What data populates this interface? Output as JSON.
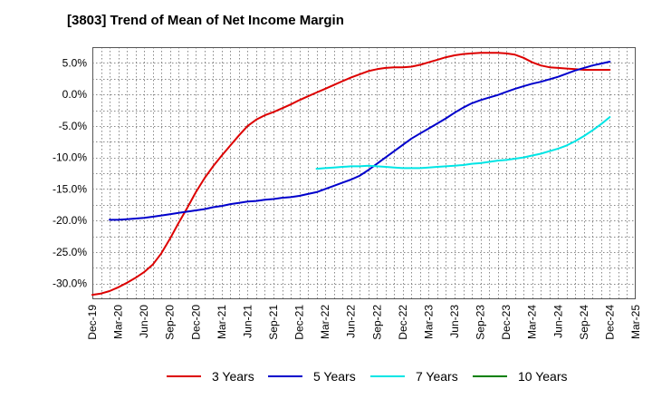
{
  "title": "[3803]  Trend of Mean of Net Income Margin",
  "chart_data": {
    "type": "line",
    "title": "[3803]  Trend of Mean of Net Income Margin",
    "xlabel": "",
    "ylabel": "",
    "x_ticks": [
      "Dec-19",
      "Mar-20",
      "Jun-20",
      "Sep-20",
      "Dec-20",
      "Mar-21",
      "Jun-21",
      "Sep-21",
      "Dec-21",
      "Mar-22",
      "Jun-22",
      "Sep-22",
      "Dec-22",
      "Mar-23",
      "Jun-23",
      "Sep-23",
      "Dec-23",
      "Mar-24",
      "Jun-24",
      "Sep-24",
      "Dec-24",
      "Mar-25"
    ],
    "y_ticks": [
      "5.0%",
      "0.0%",
      "-5.0%",
      "-10.0%",
      "-15.0%",
      "-20.0%",
      "-25.0%",
      "-30.0%"
    ],
    "y_tick_values": [
      5,
      0,
      -5,
      -10,
      -15,
      -20,
      -25,
      -30
    ],
    "ylim": [
      -32.5,
      7.5
    ],
    "grid": true,
    "legend_position": "bottom",
    "series": [
      {
        "name": "3 Years",
        "color": "#dd0000",
        "points": [
          [
            "Dec-19",
            -31.8
          ],
          [
            "Jan-20",
            -31.6
          ],
          [
            "Feb-20",
            -31.2
          ],
          [
            "Mar-20",
            -30.6
          ],
          [
            "Apr-20",
            -29.9
          ],
          [
            "May-20",
            -29.1
          ],
          [
            "Jun-20",
            -28.2
          ],
          [
            "Jul-20",
            -27.0
          ],
          [
            "Aug-20",
            -25.2
          ],
          [
            "Sep-20",
            -22.9
          ],
          [
            "Oct-20",
            -20.4
          ],
          [
            "Nov-20",
            -18.0
          ],
          [
            "Dec-20",
            -15.5
          ],
          [
            "Jan-21",
            -13.3
          ],
          [
            "Feb-21",
            -11.4
          ],
          [
            "Mar-21",
            -9.7
          ],
          [
            "Apr-21",
            -8.1
          ],
          [
            "May-21",
            -6.5
          ],
          [
            "Jun-21",
            -5.0
          ],
          [
            "Jul-21",
            -4.0
          ],
          [
            "Aug-21",
            -3.3
          ],
          [
            "Sep-21",
            -2.8
          ],
          [
            "Oct-21",
            -2.2
          ],
          [
            "Nov-21",
            -1.6
          ],
          [
            "Dec-21",
            -0.9
          ],
          [
            "Jan-22",
            -0.3
          ],
          [
            "Feb-22",
            0.3
          ],
          [
            "Mar-22",
            0.9
          ],
          [
            "Apr-22",
            1.5
          ],
          [
            "May-22",
            2.1
          ],
          [
            "Jun-22",
            2.7
          ],
          [
            "Jul-22",
            3.2
          ],
          [
            "Aug-22",
            3.7
          ],
          [
            "Sep-22",
            4.0
          ],
          [
            "Oct-22",
            4.2
          ],
          [
            "Nov-22",
            4.3
          ],
          [
            "Dec-22",
            4.3
          ],
          [
            "Jan-23",
            4.4
          ],
          [
            "Feb-23",
            4.7
          ],
          [
            "Mar-23",
            5.1
          ],
          [
            "Apr-23",
            5.5
          ],
          [
            "May-23",
            5.9
          ],
          [
            "Jun-23",
            6.2
          ],
          [
            "Jul-23",
            6.4
          ],
          [
            "Aug-23",
            6.5
          ],
          [
            "Sep-23",
            6.6
          ],
          [
            "Oct-23",
            6.6
          ],
          [
            "Nov-23",
            6.6
          ],
          [
            "Dec-23",
            6.5
          ],
          [
            "Jan-24",
            6.3
          ],
          [
            "Feb-24",
            5.8
          ],
          [
            "Mar-24",
            5.1
          ],
          [
            "Apr-24",
            4.6
          ],
          [
            "May-24",
            4.3
          ],
          [
            "Jun-24",
            4.2
          ],
          [
            "Jul-24",
            4.1
          ],
          [
            "Aug-24",
            4.0
          ],
          [
            "Sep-24",
            3.9
          ],
          [
            "Oct-24",
            3.9
          ],
          [
            "Nov-24",
            3.9
          ],
          [
            "Dec-24",
            3.9
          ]
        ]
      },
      {
        "name": "5 Years",
        "color": "#0000cc",
        "points": [
          [
            "Feb-20",
            -19.9
          ],
          [
            "Mar-20",
            -19.9
          ],
          [
            "Apr-20",
            -19.8
          ],
          [
            "May-20",
            -19.7
          ],
          [
            "Jun-20",
            -19.6
          ],
          [
            "Jul-20",
            -19.4
          ],
          [
            "Aug-20",
            -19.2
          ],
          [
            "Sep-20",
            -19.0
          ],
          [
            "Oct-20",
            -18.8
          ],
          [
            "Nov-20",
            -18.6
          ],
          [
            "Dec-20",
            -18.4
          ],
          [
            "Jan-21",
            -18.2
          ],
          [
            "Feb-21",
            -17.9
          ],
          [
            "Mar-21",
            -17.7
          ],
          [
            "Apr-21",
            -17.4
          ],
          [
            "May-21",
            -17.2
          ],
          [
            "Jun-21",
            -17.0
          ],
          [
            "Jul-21",
            -16.9
          ],
          [
            "Aug-21",
            -16.7
          ],
          [
            "Sep-21",
            -16.6
          ],
          [
            "Oct-21",
            -16.4
          ],
          [
            "Nov-21",
            -16.3
          ],
          [
            "Dec-21",
            -16.1
          ],
          [
            "Jan-22",
            -15.8
          ],
          [
            "Feb-22",
            -15.5
          ],
          [
            "Mar-22",
            -15.0
          ],
          [
            "Apr-22",
            -14.5
          ],
          [
            "May-22",
            -14.0
          ],
          [
            "Jun-22",
            -13.5
          ],
          [
            "Jul-22",
            -12.9
          ],
          [
            "Aug-22",
            -12.0
          ],
          [
            "Sep-22",
            -11.0
          ],
          [
            "Oct-22",
            -10.0
          ],
          [
            "Nov-22",
            -9.0
          ],
          [
            "Dec-22",
            -8.0
          ],
          [
            "Jan-23",
            -7.0
          ],
          [
            "Feb-23",
            -6.2
          ],
          [
            "Mar-23",
            -5.4
          ],
          [
            "Apr-23",
            -4.6
          ],
          [
            "May-23",
            -3.8
          ],
          [
            "Jun-23",
            -2.9
          ],
          [
            "Jul-23",
            -2.1
          ],
          [
            "Aug-23",
            -1.4
          ],
          [
            "Sep-23",
            -0.9
          ],
          [
            "Oct-23",
            -0.5
          ],
          [
            "Nov-23",
            -0.1
          ],
          [
            "Dec-23",
            0.4
          ],
          [
            "Jan-24",
            0.9
          ],
          [
            "Feb-24",
            1.3
          ],
          [
            "Mar-24",
            1.7
          ],
          [
            "Apr-24",
            2.0
          ],
          [
            "May-24",
            2.4
          ],
          [
            "Jun-24",
            2.8
          ],
          [
            "Jul-24",
            3.3
          ],
          [
            "Aug-24",
            3.8
          ],
          [
            "Sep-24",
            4.2
          ],
          [
            "Oct-24",
            4.6
          ],
          [
            "Nov-24",
            4.9
          ],
          [
            "Dec-24",
            5.2
          ]
        ]
      },
      {
        "name": "7 Years",
        "color": "#00e5e5",
        "points": [
          [
            "Feb-22",
            -11.8
          ],
          [
            "Mar-22",
            -11.7
          ],
          [
            "Apr-22",
            -11.6
          ],
          [
            "May-22",
            -11.5
          ],
          [
            "Jun-22",
            -11.4
          ],
          [
            "Jul-22",
            -11.4
          ],
          [
            "Aug-22",
            -11.3
          ],
          [
            "Sep-22",
            -11.4
          ],
          [
            "Oct-22",
            -11.5
          ],
          [
            "Nov-22",
            -11.6
          ],
          [
            "Dec-22",
            -11.7
          ],
          [
            "Jan-23",
            -11.7
          ],
          [
            "Feb-23",
            -11.7
          ],
          [
            "Mar-23",
            -11.6
          ],
          [
            "Apr-23",
            -11.5
          ],
          [
            "May-23",
            -11.4
          ],
          [
            "Jun-23",
            -11.3
          ],
          [
            "Jul-23",
            -11.2
          ],
          [
            "Aug-23",
            -11.0
          ],
          [
            "Sep-23",
            -10.9
          ],
          [
            "Oct-23",
            -10.7
          ],
          [
            "Nov-23",
            -10.5
          ],
          [
            "Dec-23",
            -10.4
          ],
          [
            "Jan-24",
            -10.2
          ],
          [
            "Feb-24",
            -10.0
          ],
          [
            "Mar-24",
            -9.7
          ],
          [
            "Apr-24",
            -9.4
          ],
          [
            "May-24",
            -9.0
          ],
          [
            "Jun-24",
            -8.6
          ],
          [
            "Jul-24",
            -8.1
          ],
          [
            "Aug-24",
            -7.4
          ],
          [
            "Sep-24",
            -6.6
          ],
          [
            "Oct-24",
            -5.7
          ],
          [
            "Nov-24",
            -4.7
          ],
          [
            "Dec-24",
            -3.6
          ]
        ]
      },
      {
        "name": "10 Years",
        "color": "#008000",
        "points": []
      }
    ]
  }
}
